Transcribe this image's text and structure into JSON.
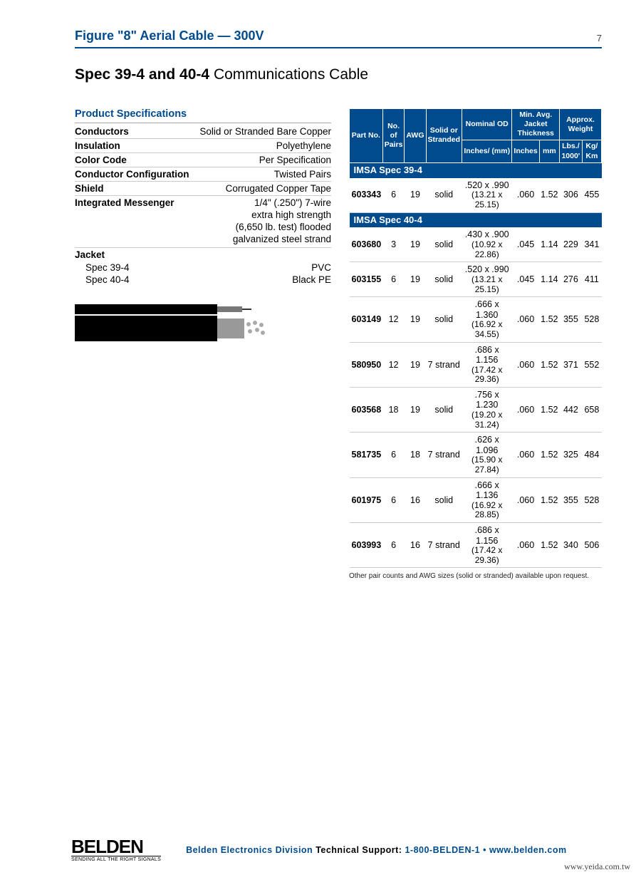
{
  "header": {
    "title": "Figure \"8\" Aerial Cable — 300V",
    "page_number": "7"
  },
  "spec_title_bold": "Spec 39-4 and 40-4",
  "spec_title_rest": "Communications Cable",
  "product_specs": {
    "heading": "Product Specifications",
    "rows": [
      {
        "label": "Conductors",
        "value": "Solid or Stranded Bare Copper"
      },
      {
        "label": "Insulation",
        "value": "Polyethylene"
      },
      {
        "label": "Color Code",
        "value": "Per Specification"
      },
      {
        "label": "Conductor Configuration",
        "value": "Twisted Pairs"
      },
      {
        "label": "Shield",
        "value": "Corrugated Copper Tape"
      }
    ],
    "messenger_label": "Integrated Messenger",
    "messenger_lines": [
      "1/4\" (.250\") 7-wire",
      "extra high strength",
      "(6,650 lb. test) flooded",
      "galvanized steel strand"
    ],
    "jacket_label": "Jacket",
    "jacket_rows": [
      {
        "label": "Spec 39-4",
        "value": "PVC"
      },
      {
        "label": "Spec 40-4",
        "value": "Black PE"
      }
    ]
  },
  "parts_table": {
    "headers": {
      "part": "Part No.",
      "pairs": "No. of Pairs",
      "awg": "AWG",
      "strand": "Solid or Stranded",
      "od_top": "Nominal OD",
      "od_sub": "Inches/ (mm)",
      "thick_top": "Min. Avg. Jacket Thickness",
      "thick_in": "Inches",
      "thick_mm": "mm",
      "weight_top": "Approx. Weight",
      "weight_lbs": "Lbs./ 1000'",
      "weight_kg": "Kg/ Km"
    },
    "sections": [
      {
        "title": "IMSA Spec 39-4",
        "rows": [
          {
            "part": "603343",
            "pairs": "6",
            "awg": "19",
            "strand": "solid",
            "od_in": ".520 x .990",
            "od_mm": "(13.21 x 25.15)",
            "thick_in": ".060",
            "thick_mm": "1.52",
            "lbs": "306",
            "kg": "455"
          }
        ]
      },
      {
        "title": "IMSA Spec 40-4",
        "rows": [
          {
            "part": "603680",
            "pairs": "3",
            "awg": "19",
            "strand": "solid",
            "od_in": ".430 x .900",
            "od_mm": "(10.92 x 22.86)",
            "thick_in": ".045",
            "thick_mm": "1.14",
            "lbs": "229",
            "kg": "341"
          },
          {
            "part": "603155",
            "pairs": "6",
            "awg": "19",
            "strand": "solid",
            "od_in": ".520 x .990",
            "od_mm": "(13.21 x 25.15)",
            "thick_in": ".045",
            "thick_mm": "1.14",
            "lbs": "276",
            "kg": "411"
          },
          {
            "part": "603149",
            "pairs": "12",
            "awg": "19",
            "strand": "solid",
            "od_in": ".666 x 1.360",
            "od_mm": "(16.92 x 34.55)",
            "thick_in": ".060",
            "thick_mm": "1.52",
            "lbs": "355",
            "kg": "528"
          },
          {
            "part": "580950",
            "pairs": "12",
            "awg": "19",
            "strand": "7 strand",
            "od_in": ".686 x 1.156",
            "od_mm": "(17.42 x 29.36)",
            "thick_in": ".060",
            "thick_mm": "1.52",
            "lbs": "371",
            "kg": "552"
          },
          {
            "part": "603568",
            "pairs": "18",
            "awg": "19",
            "strand": "solid",
            "od_in": ".756 x 1.230",
            "od_mm": "(19.20 x 31.24)",
            "thick_in": ".060",
            "thick_mm": "1.52",
            "lbs": "442",
            "kg": "658"
          },
          {
            "part": "581735",
            "pairs": "6",
            "awg": "18",
            "strand": "7 strand",
            "od_in": ".626 x 1.096",
            "od_mm": "(15.90 x 27.84)",
            "thick_in": ".060",
            "thick_mm": "1.52",
            "lbs": "325",
            "kg": "484"
          },
          {
            "part": "601975",
            "pairs": "6",
            "awg": "16",
            "strand": "solid",
            "od_in": ".666 x 1.136",
            "od_mm": "(16.92 x 28.85)",
            "thick_in": ".060",
            "thick_mm": "1.52",
            "lbs": "355",
            "kg": "528"
          },
          {
            "part": "603993",
            "pairs": "6",
            "awg": "16",
            "strand": "7 strand",
            "od_in": ".686 x 1.156",
            "od_mm": "(17.42 x 29.36)",
            "thick_in": ".060",
            "thick_mm": "1.52",
            "lbs": "340",
            "kg": "506"
          }
        ]
      }
    ],
    "footnote": "Other pair counts and AWG sizes (solid or stranded) available upon request."
  },
  "footer": {
    "logo_main": "BELDEN",
    "logo_tag": "SENDING ALL THE RIGHT SIGNALS",
    "division": "Belden Electronics Division",
    "support_label": "Technical Support:",
    "phone": "1-800-BELDEN-1",
    "sep": " • ",
    "url": "www.belden.com",
    "watermark": "www.yeida.com.tw"
  },
  "colors": {
    "brand_blue": "#004b8d",
    "text": "#000000",
    "border_gray": "#cccccc"
  }
}
